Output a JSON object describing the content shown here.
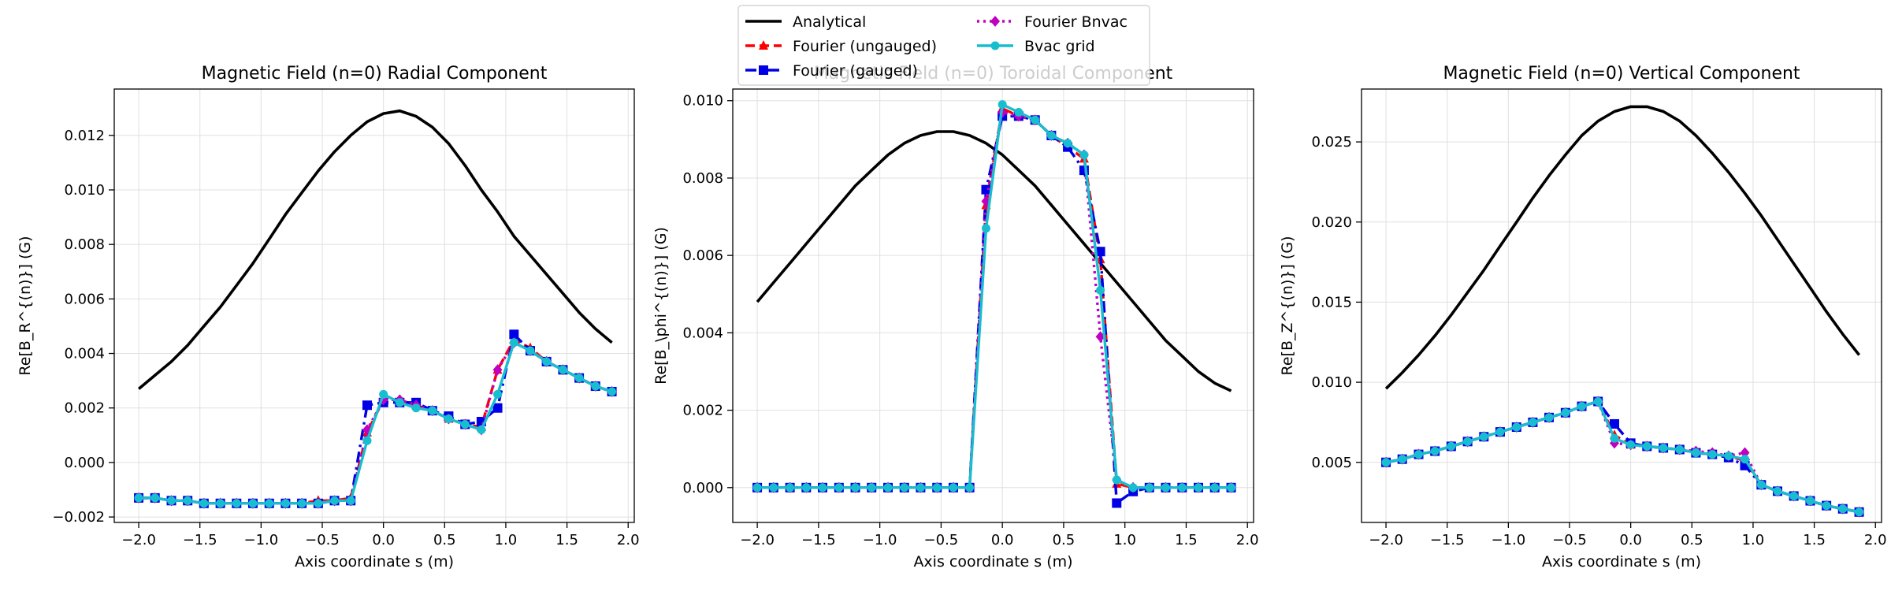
{
  "legend": {
    "placement": "top-center",
    "entries": [
      {
        "label": "Analytical",
        "color": "#000000",
        "dash": "",
        "marker": "none"
      },
      {
        "label": "Fourier (ungauged)",
        "color": "#ff0000",
        "dash": "12,6",
        "marker": "triangle"
      },
      {
        "label": "Fourier (gauged)",
        "color": "#0000e6",
        "dash": "14,6,3,6",
        "marker": "square"
      },
      {
        "label": "Fourier Bnvac",
        "color": "#c000c0",
        "dash": "3,5",
        "marker": "diamond"
      },
      {
        "label": "Bvac grid",
        "color": "#17becf",
        "dash": "",
        "marker": "circle"
      }
    ]
  },
  "chart_data": [
    {
      "type": "line",
      "title": "Magnetic Field (n=0) Radial Component",
      "xlabel": "Axis coordinate s (m)",
      "ylabel": "Re[B_R^{(n)}] (G)",
      "xlim": [
        -2.2,
        2.05
      ],
      "ylim": [
        -0.0022,
        0.0137
      ],
      "xticks": [
        -2.0,
        -1.5,
        -1.0,
        -0.5,
        0.0,
        0.5,
        1.0,
        1.5,
        2.0
      ],
      "xtick_labels": [
        "−2.0",
        "−1.5",
        "−1.0",
        "−0.5",
        "0.0",
        "0.5",
        "1.0",
        "1.5",
        "2.0"
      ],
      "yticks": [
        -0.002,
        0.0,
        0.002,
        0.004,
        0.006,
        0.008,
        0.01,
        0.012
      ],
      "ytick_labels": [
        "−0.002",
        "0.000",
        "0.002",
        "0.004",
        "0.006",
        "0.008",
        "0.010",
        "0.012"
      ],
      "grid": true,
      "x": [
        -2.0,
        -1.867,
        -1.733,
        -1.6,
        -1.467,
        -1.333,
        -1.2,
        -1.067,
        -0.933,
        -0.8,
        -0.667,
        -0.533,
        -0.4,
        -0.267,
        -0.133,
        0.0,
        0.133,
        0.267,
        0.4,
        0.533,
        0.667,
        0.8,
        0.933,
        1.067,
        1.2,
        1.333,
        1.467,
        1.6,
        1.733,
        1.867
      ],
      "series": [
        {
          "name": "Analytical",
          "values": [
            0.0027,
            0.0032,
            0.0037,
            0.0043,
            0.005,
            0.0057,
            0.0065,
            0.0073,
            0.0082,
            0.0091,
            0.0099,
            0.0107,
            0.0114,
            0.012,
            0.0125,
            0.0128,
            0.0129,
            0.0127,
            0.0123,
            0.0117,
            0.0109,
            0.01,
            0.0092,
            0.0083,
            0.0076,
            0.0069,
            0.0062,
            0.0055,
            0.0049,
            0.0044
          ]
        },
        {
          "name": "Fourier (ungauged)",
          "values": [
            -0.0013,
            -0.0013,
            -0.0014,
            -0.0014,
            -0.0015,
            -0.0015,
            -0.0015,
            -0.0015,
            -0.0015,
            -0.0015,
            -0.0015,
            -0.0014,
            -0.0014,
            -0.0013,
            0.0011,
            0.0023,
            0.0023,
            0.0021,
            0.0019,
            0.0016,
            0.0014,
            0.0013,
            0.0034,
            0.0045,
            0.0042,
            0.0037,
            0.0034,
            0.0031,
            0.0028,
            0.0026
          ]
        },
        {
          "name": "Fourier (gauged)",
          "values": [
            -0.0013,
            -0.0013,
            -0.0014,
            -0.0014,
            -0.0015,
            -0.0015,
            -0.0015,
            -0.0015,
            -0.0015,
            -0.0015,
            -0.0015,
            -0.0015,
            -0.0014,
            -0.0014,
            0.0021,
            0.0022,
            0.0022,
            0.0022,
            0.0019,
            0.0017,
            0.0014,
            0.0015,
            0.002,
            0.0047,
            0.0041,
            0.0037,
            0.0034,
            0.0031,
            0.0028,
            0.0026
          ]
        },
        {
          "name": "Fourier Bnvac",
          "values": [
            -0.0013,
            -0.0013,
            -0.0014,
            -0.0014,
            -0.0015,
            -0.0015,
            -0.0015,
            -0.0015,
            -0.0015,
            -0.0015,
            -0.0015,
            -0.0015,
            -0.0014,
            -0.0014,
            0.0012,
            0.0023,
            0.0023,
            0.0021,
            0.0019,
            0.0016,
            0.0014,
            0.0012,
            0.0034,
            0.0044,
            0.0041,
            0.0037,
            0.0034,
            0.0031,
            0.0028,
            0.0026
          ]
        },
        {
          "name": "Bvac grid",
          "values": [
            -0.0013,
            -0.0013,
            -0.0014,
            -0.0014,
            -0.0015,
            -0.0015,
            -0.0015,
            -0.0015,
            -0.0015,
            -0.0015,
            -0.0015,
            -0.0015,
            -0.0014,
            -0.0014,
            0.0008,
            0.0025,
            0.0022,
            0.002,
            0.0019,
            0.0016,
            0.0014,
            0.0012,
            0.0025,
            0.0044,
            0.0041,
            0.0037,
            0.0034,
            0.0031,
            0.0028,
            0.0026
          ]
        }
      ]
    },
    {
      "type": "line",
      "title": "Magnetic Field (n=0) Toroidal Component",
      "xlabel": "Axis coordinate s (m)",
      "ylabel": "Re[B_\\phi^{(n)}] (G)",
      "xlim": [
        -2.2,
        2.05
      ],
      "ylim": [
        -0.0009,
        0.0103
      ],
      "xticks": [
        -2.0,
        -1.5,
        -1.0,
        -0.5,
        0.0,
        0.5,
        1.0,
        1.5,
        2.0
      ],
      "xtick_labels": [
        "−2.0",
        "−1.5",
        "−1.0",
        "−0.5",
        "0.0",
        "0.5",
        "1.0",
        "1.5",
        "2.0"
      ],
      "yticks": [
        0.0,
        0.002,
        0.004,
        0.006,
        0.008,
        0.01
      ],
      "ytick_labels": [
        "0.000",
        "0.002",
        "0.004",
        "0.006",
        "0.008",
        "0.010"
      ],
      "grid": true,
      "x": [
        -2.0,
        -1.867,
        -1.733,
        -1.6,
        -1.467,
        -1.333,
        -1.2,
        -1.067,
        -0.933,
        -0.8,
        -0.667,
        -0.533,
        -0.4,
        -0.267,
        -0.133,
        0.0,
        0.133,
        0.267,
        0.4,
        0.533,
        0.667,
        0.8,
        0.933,
        1.067,
        1.2,
        1.333,
        1.467,
        1.6,
        1.733,
        1.867
      ],
      "series": [
        {
          "name": "Analytical",
          "values": [
            0.0048,
            0.0053,
            0.0058,
            0.0063,
            0.0068,
            0.0073,
            0.0078,
            0.0082,
            0.0086,
            0.0089,
            0.0091,
            0.0092,
            0.0092,
            0.0091,
            0.0089,
            0.0086,
            0.0082,
            0.0078,
            0.0073,
            0.0068,
            0.0063,
            0.0058,
            0.0053,
            0.0048,
            0.0043,
            0.0038,
            0.0034,
            0.003,
            0.0027,
            0.0025
          ]
        },
        {
          "name": "Fourier (ungauged)",
          "values": [
            0.0,
            0.0,
            0.0,
            0.0,
            0.0,
            0.0,
            0.0,
            0.0,
            0.0,
            0.0,
            0.0,
            0.0,
            0.0,
            0.0,
            0.0073,
            0.0098,
            0.0096,
            0.0095,
            0.0091,
            0.0088,
            0.0085,
            0.0059,
            0.0001,
            0.0,
            0.0,
            0.0,
            0.0,
            0.0,
            0.0,
            0.0
          ]
        },
        {
          "name": "Fourier (gauged)",
          "values": [
            0.0,
            0.0,
            0.0,
            0.0,
            0.0,
            0.0,
            0.0,
            0.0,
            0.0,
            0.0,
            0.0,
            0.0,
            0.0,
            0.0,
            0.0077,
            0.0096,
            0.0096,
            0.0095,
            0.0091,
            0.0088,
            0.0082,
            0.0061,
            -0.0004,
            -0.0001,
            0.0,
            0.0,
            0.0,
            0.0,
            0.0,
            0.0
          ]
        },
        {
          "name": "Fourier Bnvac",
          "values": [
            0.0,
            0.0,
            0.0,
            0.0,
            0.0,
            0.0,
            0.0,
            0.0,
            0.0,
            0.0,
            0.0,
            0.0,
            0.0,
            0.0,
            0.0074,
            0.0097,
            0.0096,
            0.0095,
            0.0091,
            0.0089,
            0.0086,
            0.0039,
            0.0002,
            0.0,
            0.0,
            0.0,
            0.0,
            0.0,
            0.0,
            0.0
          ]
        },
        {
          "name": "Bvac grid",
          "values": [
            0.0,
            0.0,
            0.0,
            0.0,
            0.0,
            0.0,
            0.0,
            0.0,
            0.0,
            0.0,
            0.0,
            0.0,
            0.0,
            0.0,
            0.0067,
            0.0099,
            0.0097,
            0.0095,
            0.0091,
            0.0089,
            0.0086,
            0.0051,
            0.0002,
            0.0,
            0.0,
            0.0,
            0.0,
            0.0,
            0.0,
            0.0
          ]
        }
      ]
    },
    {
      "type": "line",
      "title": "Magnetic Field (n=0) Vertical Component",
      "xlabel": "Axis coordinate s (m)",
      "ylabel": "Re[B_Z^{(n)}] (G)",
      "xlim": [
        -2.2,
        2.05
      ],
      "ylim": [
        0.00125,
        0.0283
      ],
      "xticks": [
        -2.0,
        -1.5,
        -1.0,
        -0.5,
        0.0,
        0.5,
        1.0,
        1.5,
        2.0
      ],
      "xtick_labels": [
        "−2.0",
        "−1.5",
        "−1.0",
        "−0.5",
        "0.0",
        "0.5",
        "1.0",
        "1.5",
        "2.0"
      ],
      "yticks": [
        0.005,
        0.01,
        0.015,
        0.02,
        0.025
      ],
      "ytick_labels": [
        "0.005",
        "0.010",
        "0.015",
        "0.020",
        "0.025"
      ],
      "grid": true,
      "x": [
        -2.0,
        -1.867,
        -1.733,
        -1.6,
        -1.467,
        -1.333,
        -1.2,
        -1.067,
        -0.933,
        -0.8,
        -0.667,
        -0.533,
        -0.4,
        -0.267,
        -0.133,
        0.0,
        0.133,
        0.267,
        0.4,
        0.533,
        0.667,
        0.8,
        0.933,
        1.067,
        1.2,
        1.333,
        1.467,
        1.6,
        1.733,
        1.867
      ],
      "series": [
        {
          "name": "Analytical",
          "values": [
            0.0096,
            0.0106,
            0.0117,
            0.0129,
            0.0142,
            0.0156,
            0.017,
            0.0185,
            0.02,
            0.0215,
            0.0229,
            0.0242,
            0.0254,
            0.0263,
            0.0269,
            0.0272,
            0.0272,
            0.0269,
            0.0263,
            0.0254,
            0.0243,
            0.0231,
            0.0218,
            0.0204,
            0.0189,
            0.0174,
            0.0159,
            0.0144,
            0.013,
            0.0117
          ]
        },
        {
          "name": "Fourier (ungauged)",
          "values": [
            0.005,
            0.0052,
            0.0055,
            0.0057,
            0.006,
            0.0063,
            0.0066,
            0.0069,
            0.0072,
            0.0075,
            0.0078,
            0.0081,
            0.0085,
            0.0088,
            0.0067,
            0.0061,
            0.006,
            0.0059,
            0.0058,
            0.0056,
            0.0055,
            0.0054,
            0.0051,
            0.0036,
            0.0032,
            0.0029,
            0.0026,
            0.0023,
            0.0021,
            0.0019
          ]
        },
        {
          "name": "Fourier (gauged)",
          "values": [
            0.005,
            0.0052,
            0.0055,
            0.0057,
            0.006,
            0.0063,
            0.0066,
            0.0069,
            0.0072,
            0.0075,
            0.0078,
            0.0081,
            0.0085,
            0.0088,
            0.0074,
            0.0062,
            0.006,
            0.0059,
            0.0058,
            0.0056,
            0.0055,
            0.0053,
            0.0048,
            0.0036,
            0.0032,
            0.0029,
            0.0026,
            0.0023,
            0.0021,
            0.0019
          ]
        },
        {
          "name": "Fourier Bnvac",
          "values": [
            0.005,
            0.0052,
            0.0055,
            0.0057,
            0.006,
            0.0063,
            0.0066,
            0.0069,
            0.0072,
            0.0075,
            0.0078,
            0.0081,
            0.0085,
            0.0088,
            0.0062,
            0.0061,
            0.006,
            0.0059,
            0.0058,
            0.0057,
            0.0056,
            0.0054,
            0.0056,
            0.0036,
            0.0032,
            0.0029,
            0.0026,
            0.0023,
            0.0021,
            0.0019
          ]
        },
        {
          "name": "Bvac grid",
          "values": [
            0.005,
            0.0052,
            0.0055,
            0.0057,
            0.006,
            0.0063,
            0.0066,
            0.0069,
            0.0072,
            0.0075,
            0.0078,
            0.0081,
            0.0085,
            0.0088,
            0.0065,
            0.0061,
            0.006,
            0.0059,
            0.0058,
            0.0056,
            0.0055,
            0.0054,
            0.0052,
            0.0036,
            0.0032,
            0.0029,
            0.0026,
            0.0023,
            0.0021,
            0.0019
          ]
        }
      ]
    }
  ]
}
